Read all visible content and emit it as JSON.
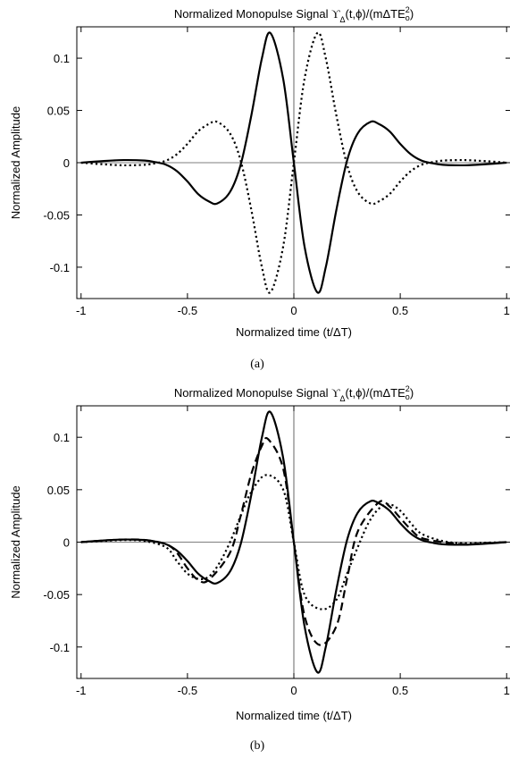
{
  "chart_data": [
    {
      "type": "line",
      "panel_label": "(a)",
      "title": {
        "prefix": "Normalized Monopulse Signal ",
        "upsilon": "ϒ",
        "upsilon_sub": "Δ",
        "args": "(t,ϕ)/(mΔTE",
        "power": "2",
        "sub": "o",
        "close": ")"
      },
      "xlabel": "Normalized time (t/ΔT)",
      "ylabel": "Normalized Amplitude",
      "xlim": [
        -1.02,
        1.02
      ],
      "ylim": [
        -0.13,
        0.13
      ],
      "xticks": [
        -1,
        -0.5,
        0,
        0.5,
        1
      ],
      "xtick_labels": [
        "-1",
        "-0.5",
        "0",
        "0.5",
        "1"
      ],
      "yticks": [
        -0.1,
        -0.05,
        0,
        0.05,
        0.1
      ],
      "ytick_labels": [
        "-0.1",
        "-0.05",
        "0",
        "0.05",
        "0.1"
      ],
      "series": [
        {
          "style": "solid",
          "x": [
            -1,
            -0.9,
            -0.8,
            -0.7,
            -0.65,
            -0.6,
            -0.55,
            -0.5,
            -0.45,
            -0.4,
            -0.36,
            -0.3,
            -0.25,
            -0.2,
            -0.15,
            -0.11,
            -0.05,
            0,
            0.05,
            0.11,
            0.15,
            0.2,
            0.25,
            0.3,
            0.36,
            0.4,
            0.45,
            0.5,
            0.55,
            0.6,
            0.65,
            0.7,
            0.8,
            0.9,
            1
          ],
          "y": [
            0,
            0.0015,
            0.0025,
            0.002,
            0.0005,
            -0.002,
            -0.008,
            -0.018,
            -0.03,
            -0.037,
            -0.039,
            -0.028,
            -0.002,
            0.045,
            0.1,
            0.124,
            0.08,
            0,
            -0.08,
            -0.124,
            -0.1,
            -0.045,
            0.002,
            0.028,
            0.039,
            0.037,
            0.03,
            0.018,
            0.008,
            0.002,
            -0.0005,
            -0.002,
            -0.0025,
            -0.0015,
            0
          ]
        },
        {
          "style": "dotted",
          "x": [
            -1,
            -0.9,
            -0.8,
            -0.7,
            -0.65,
            -0.6,
            -0.55,
            -0.5,
            -0.45,
            -0.4,
            -0.36,
            -0.3,
            -0.25,
            -0.2,
            -0.15,
            -0.11,
            -0.05,
            0,
            0.05,
            0.11,
            0.15,
            0.2,
            0.25,
            0.3,
            0.36,
            0.4,
            0.45,
            0.5,
            0.55,
            0.6,
            0.65,
            0.7,
            0.8,
            0.9,
            1
          ],
          "y": [
            0,
            -0.0015,
            -0.0025,
            -0.002,
            -0.0005,
            0.002,
            0.008,
            0.018,
            0.03,
            0.037,
            0.039,
            0.028,
            0.002,
            -0.045,
            -0.1,
            -0.124,
            -0.08,
            0,
            0.08,
            0.124,
            0.1,
            0.045,
            -0.002,
            -0.028,
            -0.039,
            -0.037,
            -0.03,
            -0.018,
            -0.008,
            -0.002,
            0.0005,
            0.002,
            0.0025,
            0.0015,
            0
          ]
        }
      ]
    },
    {
      "type": "line",
      "panel_label": "(b)",
      "title": {
        "prefix": "Normalized Monopulse Signal ",
        "upsilon": "ϒ",
        "upsilon_sub": "Δ",
        "args": "(t,ϕ)/(mΔTE",
        "power": "2",
        "sub": "o",
        "close": ")"
      },
      "xlabel": "Normalized time (t/ΔT)",
      "ylabel": "Normalized Amplitude",
      "xlim": [
        -1.02,
        1.02
      ],
      "ylim": [
        -0.13,
        0.13
      ],
      "xticks": [
        -1,
        -0.5,
        0,
        0.5,
        1
      ],
      "xtick_labels": [
        "-1",
        "-0.5",
        "0",
        "0.5",
        "1"
      ],
      "yticks": [
        -0.1,
        -0.05,
        0,
        0.05,
        0.1
      ],
      "ytick_labels": [
        "-0.1",
        "-0.05",
        "0",
        "0.05",
        "0.1"
      ],
      "series": [
        {
          "style": "solid",
          "x": [
            -1,
            -0.9,
            -0.8,
            -0.7,
            -0.65,
            -0.6,
            -0.55,
            -0.5,
            -0.45,
            -0.4,
            -0.36,
            -0.3,
            -0.25,
            -0.2,
            -0.15,
            -0.11,
            -0.05,
            0,
            0.05,
            0.11,
            0.15,
            0.2,
            0.25,
            0.3,
            0.36,
            0.4,
            0.45,
            0.5,
            0.55,
            0.6,
            0.65,
            0.7,
            0.8,
            0.9,
            1
          ],
          "y": [
            0,
            0.0015,
            0.0025,
            0.002,
            0.0005,
            -0.002,
            -0.008,
            -0.018,
            -0.03,
            -0.037,
            -0.039,
            -0.028,
            -0.002,
            0.045,
            0.1,
            0.124,
            0.08,
            0,
            -0.08,
            -0.124,
            -0.1,
            -0.045,
            0.002,
            0.028,
            0.039,
            0.037,
            0.03,
            0.018,
            0.008,
            0.002,
            -0.0005,
            -0.002,
            -0.0025,
            -0.0015,
            0
          ]
        },
        {
          "style": "dashed",
          "x": [
            -1,
            -0.9,
            -0.8,
            -0.7,
            -0.6,
            -0.55,
            -0.5,
            -0.45,
            -0.4,
            -0.3,
            -0.25,
            -0.2,
            -0.15,
            -0.12,
            -0.05,
            0,
            0.05,
            0.12,
            0.2,
            0.25,
            0.3,
            0.4,
            0.45,
            0.5,
            0.55,
            0.6,
            0.7,
            0.8,
            0.9,
            1
          ],
          "y": [
            0,
            0.0015,
            0.0025,
            0.002,
            -0.002,
            -0.01,
            -0.025,
            -0.036,
            -0.036,
            -0.01,
            0.025,
            0.065,
            0.092,
            0.098,
            0.07,
            0,
            -0.07,
            -0.098,
            -0.08,
            -0.035,
            0.01,
            0.038,
            0.034,
            0.023,
            0.012,
            0.004,
            0,
            -0.002,
            -0.001,
            0
          ]
        },
        {
          "style": "dotted",
          "x": [
            -1,
            -0.9,
            -0.8,
            -0.7,
            -0.6,
            -0.55,
            -0.5,
            -0.45,
            -0.4,
            -0.35,
            -0.3,
            -0.25,
            -0.2,
            -0.13,
            -0.05,
            0,
            0.05,
            0.13,
            0.2,
            0.25,
            0.3,
            0.35,
            0.4,
            0.45,
            0.5,
            0.55,
            0.6,
            0.7,
            0.8,
            0.9,
            1
          ],
          "y": [
            0,
            0.001,
            0.002,
            0.001,
            -0.005,
            -0.018,
            -0.03,
            -0.035,
            -0.033,
            -0.02,
            0,
            0.025,
            0.048,
            0.064,
            0.05,
            0,
            -0.05,
            -0.064,
            -0.055,
            -0.03,
            -0.005,
            0.018,
            0.032,
            0.036,
            0.03,
            0.018,
            0.008,
            0.001,
            -0.001,
            -0.0005,
            0
          ]
        }
      ]
    }
  ]
}
